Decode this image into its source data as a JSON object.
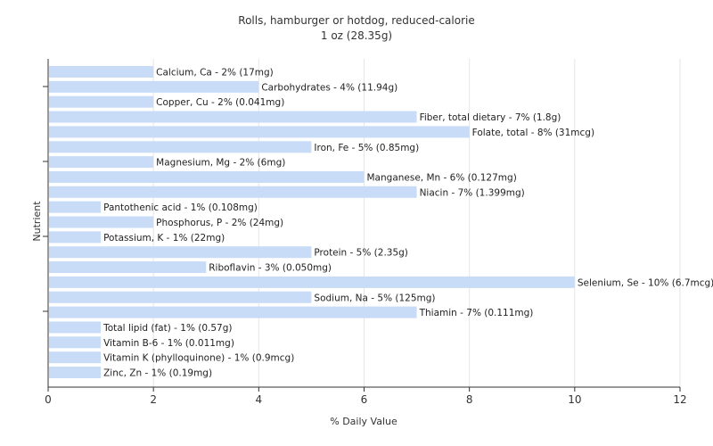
{
  "chart_data": {
    "type": "bar",
    "orientation": "horizontal",
    "title": "Rolls, hamburger or hotdog, reduced-calorie",
    "subtitle": "1 oz (28.35g)",
    "xlabel": "% Daily Value",
    "ylabel": "Nutrient",
    "xlim": [
      0,
      12
    ],
    "xticks": [
      "0",
      "2",
      "4",
      "6",
      "8",
      "10",
      "12"
    ],
    "grid": true,
    "bar_color": "#c8dcf8",
    "categories": [
      "Calcium, Ca",
      "Carbohydrates",
      "Copper, Cu",
      "Fiber, total dietary",
      "Folate, total",
      "Iron, Fe",
      "Magnesium, Mg",
      "Manganese, Mn",
      "Niacin",
      "Pantothenic acid",
      "Phosphorus, P",
      "Potassium, K",
      "Protein",
      "Riboflavin",
      "Selenium, Se",
      "Sodium, Na",
      "Thiamin",
      "Total lipid (fat)",
      "Vitamin B-6",
      "Vitamin K (phylloquinone)",
      "Zinc, Zn"
    ],
    "values": [
      2,
      4,
      2,
      7,
      8,
      5,
      2,
      6,
      7,
      1,
      2,
      1,
      5,
      3,
      10,
      5,
      7,
      1,
      1,
      1,
      1
    ],
    "bar_labels": [
      "Calcium, Ca - 2% (17mg)",
      "Carbohydrates - 4% (11.94g)",
      "Copper, Cu - 2% (0.041mg)",
      "Fiber, total dietary - 7% (1.8g)",
      "Folate, total - 8% (31mcg)",
      "Iron, Fe - 5% (0.85mg)",
      "Magnesium, Mg - 2% (6mg)",
      "Manganese, Mn - 6% (0.127mg)",
      "Niacin - 7% (1.399mg)",
      "Pantothenic acid - 1% (0.108mg)",
      "Phosphorus, P - 2% (24mg)",
      "Potassium, K - 1% (22mg)",
      "Protein - 5% (2.35g)",
      "Riboflavin - 3% (0.050mg)",
      "Selenium, Se - 10% (6.7mcg)",
      "Sodium, Na - 5% (125mg)",
      "Thiamin - 7% (0.111mg)",
      "Total lipid (fat) - 1% (0.57g)",
      "Vitamin B-6 - 1% (0.011mg)",
      "Vitamin K (phylloquinone) - 1% (0.9mcg)",
      "Zinc, Zn - 1% (0.19mg)"
    ]
  }
}
